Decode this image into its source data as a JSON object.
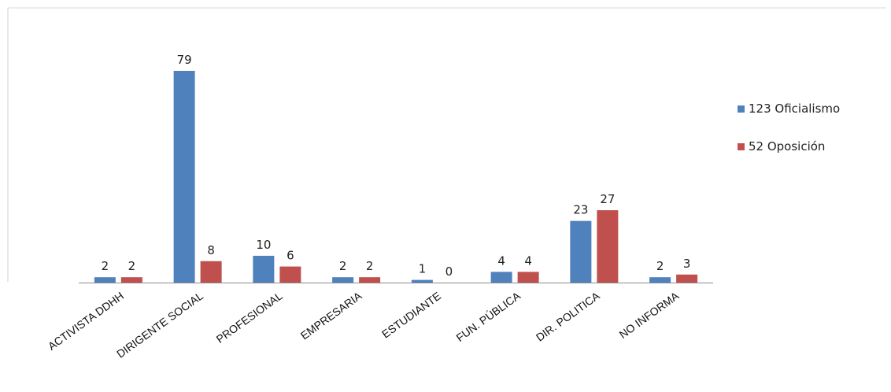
{
  "chart_data": {
    "type": "bar",
    "categories": [
      "ACTIVISTA DDHH",
      "DIRIGENTE SOCIAL",
      "PROFESIONAL",
      "EMPRESARIA",
      "ESTUDIANTE",
      "FUN. PÚBLICA",
      "DIR. POLITICA",
      "NO INFORMA"
    ],
    "series": [
      {
        "name": "123 Oficialismo",
        "values": [
          2,
          79,
          10,
          2,
          1,
          4,
          23,
          2
        ],
        "color": "#4f81bd"
      },
      {
        "name": "52 Oposición",
        "values": [
          2,
          8,
          6,
          2,
          0,
          4,
          27,
          3
        ],
        "color": "#c0504d"
      }
    ],
    "title": "",
    "xlabel": "",
    "ylabel": "",
    "ylim": [
      0,
      79
    ],
    "grid": false,
    "legend_position": "right",
    "data_labels": true
  }
}
